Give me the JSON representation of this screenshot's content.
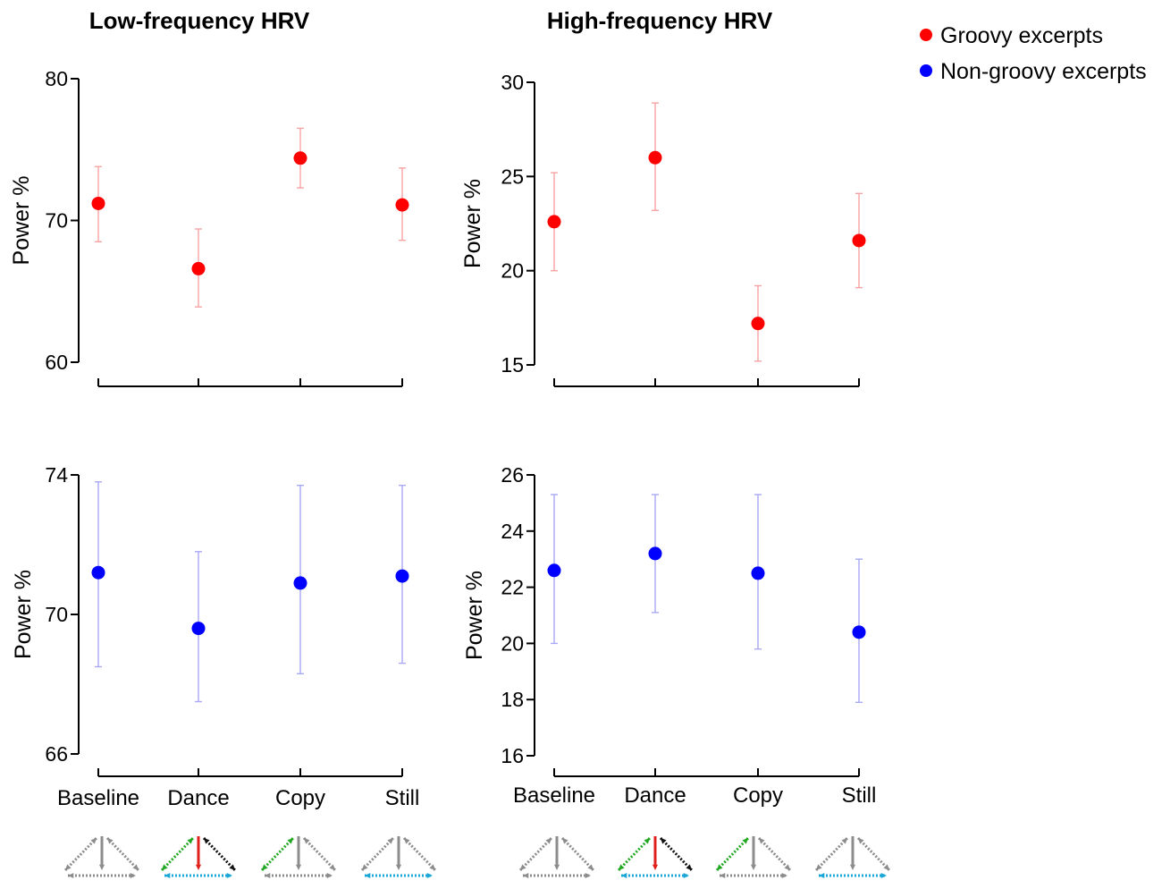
{
  "chart_data": [
    {
      "type": "scatter",
      "panel": "top-left",
      "title": "Low-frequency HRV",
      "ylabel": "Power %",
      "categories": [
        "Baseline",
        "Dance",
        "Copy",
        "Still"
      ],
      "ylim": [
        60,
        80
      ],
      "yticks": [
        60,
        70,
        80
      ],
      "series": [
        {
          "name": "Groovy excerpts",
          "color": "#ff0000",
          "values": [
            71.2,
            66.6,
            74.4,
            71.1
          ],
          "err_low": [
            68.5,
            63.9,
            72.3,
            68.6
          ],
          "err_high": [
            73.8,
            69.4,
            76.5,
            73.7
          ]
        }
      ]
    },
    {
      "type": "scatter",
      "panel": "top-right",
      "title": "High-frequency HRV",
      "ylabel": "Power %",
      "categories": [
        "Baseline",
        "Dance",
        "Copy",
        "Still"
      ],
      "ylim": [
        15,
        30
      ],
      "yticks": [
        15,
        20,
        25,
        30
      ],
      "series": [
        {
          "name": "Groovy excerpts",
          "color": "#ff0000",
          "values": [
            22.6,
            26.0,
            17.2,
            21.6
          ],
          "err_low": [
            20.0,
            23.2,
            15.2,
            19.1
          ],
          "err_high": [
            25.2,
            28.9,
            19.2,
            24.1
          ]
        }
      ]
    },
    {
      "type": "scatter",
      "panel": "bottom-left",
      "title": "",
      "ylabel": "Power %",
      "categories": [
        "Baseline",
        "Dance",
        "Copy",
        "Still"
      ],
      "ylim": [
        66,
        74
      ],
      "yticks": [
        66,
        70,
        74
      ],
      "series": [
        {
          "name": "Non-groovy excerpts",
          "color": "#0000ff",
          "values": [
            71.2,
            69.6,
            70.9,
            71.1
          ],
          "err_low": [
            68.5,
            67.5,
            68.3,
            68.6
          ],
          "err_high": [
            73.8,
            71.8,
            73.7,
            73.7
          ]
        }
      ]
    },
    {
      "type": "scatter",
      "panel": "bottom-right",
      "title": "",
      "ylabel": "Power %",
      "categories": [
        "Baseline",
        "Dance",
        "Copy",
        "Still"
      ],
      "ylim": [
        16,
        26
      ],
      "yticks": [
        16,
        18,
        20,
        22,
        24,
        26
      ],
      "series": [
        {
          "name": "Non-groovy excerpts",
          "color": "#0000ff",
          "values": [
            22.6,
            23.2,
            22.5,
            20.4
          ],
          "err_low": [
            20.0,
            21.1,
            19.8,
            17.9
          ],
          "err_high": [
            25.3,
            25.3,
            25.3,
            23.0
          ]
        }
      ]
    }
  ],
  "legend": [
    {
      "label": "Groovy excerpts",
      "color": "#ff0000"
    },
    {
      "label": "Non-groovy excerpts",
      "color": "#0000ff"
    }
  ],
  "interaction_icons": {
    "colors": {
      "gray": "#8c8c8c",
      "green": "#22a822",
      "red": "#e0201c",
      "black": "#111111",
      "cyan": "#1aa6d6"
    },
    "conditions": [
      "Baseline",
      "Dance",
      "Copy",
      "Still"
    ]
  }
}
